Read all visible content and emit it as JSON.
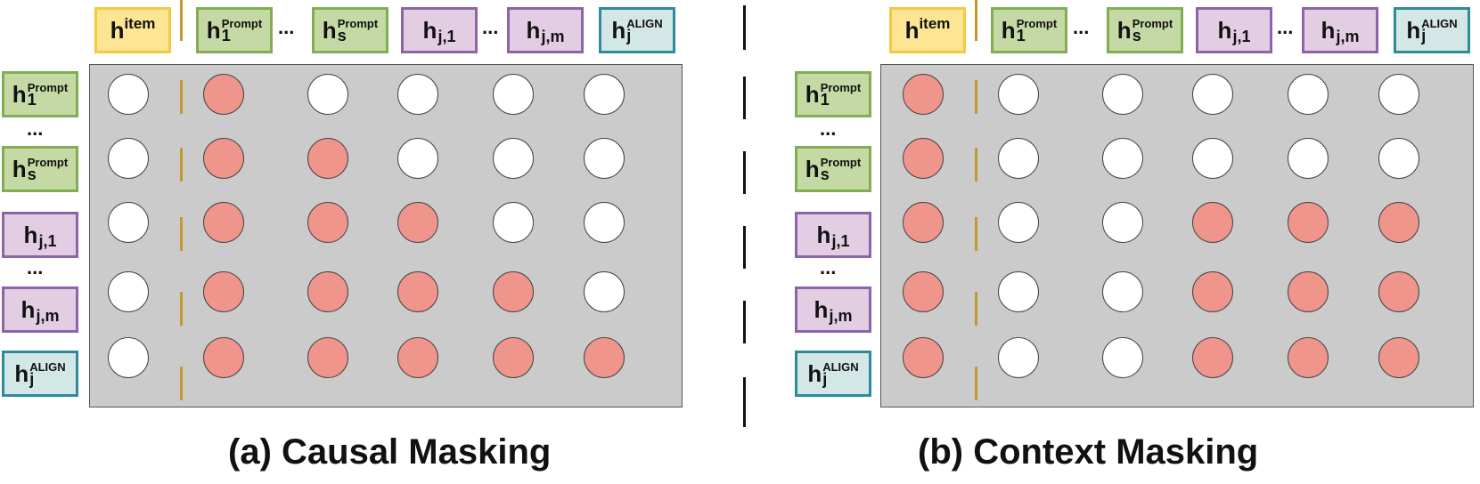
{
  "tokens": {
    "item": {
      "base": "h",
      "sup": "item"
    },
    "prompt_1": {
      "base": "h",
      "sup": "Prompt",
      "sub": "1"
    },
    "prompt_s": {
      "base": "h",
      "sup": "Prompt",
      "sub": "s"
    },
    "h_j1": {
      "base": "h",
      "sub": "j,1"
    },
    "h_jm": {
      "base": "h",
      "sub": "j,m"
    },
    "align": {
      "base": "h",
      "sup": "ALIGN",
      "sub": "j"
    },
    "ellipsis": "..."
  },
  "colors": {
    "prompt": "#c5d9a4",
    "hidden": "#e2cde3",
    "align": "#d2e7e6",
    "item": "#fde594",
    "attend": "#ef958c",
    "mask": "#ffffff",
    "matrix": "#cccbcc"
  },
  "panels": [
    {
      "caption": "(a) Causal Masking",
      "matrix": [
        [
          0,
          1,
          0,
          0,
          0,
          0
        ],
        [
          0,
          1,
          1,
          0,
          0,
          0
        ],
        [
          0,
          1,
          1,
          1,
          0,
          0
        ],
        [
          0,
          1,
          1,
          1,
          1,
          0
        ],
        [
          0,
          1,
          1,
          1,
          1,
          1
        ]
      ]
    },
    {
      "caption": "(b) Context Masking",
      "matrix": [
        [
          1,
          0,
          0,
          0,
          0,
          0
        ],
        [
          1,
          0,
          0,
          0,
          0,
          0
        ],
        [
          1,
          0,
          0,
          1,
          1,
          1
        ],
        [
          1,
          0,
          0,
          1,
          1,
          1
        ],
        [
          1,
          0,
          0,
          1,
          1,
          1
        ]
      ]
    }
  ]
}
